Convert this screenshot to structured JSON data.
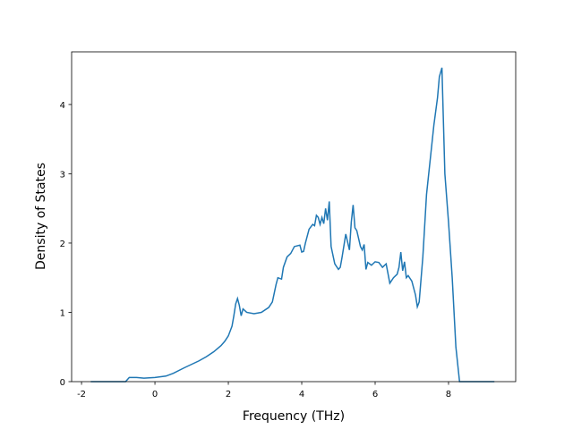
{
  "chart_data": {
    "type": "line",
    "xlabel": "Frequency (THz)",
    "ylabel": "Density of States",
    "x": [
      -1.75,
      -0.8,
      -0.7,
      -0.5,
      -0.3,
      0,
      0.3,
      0.5,
      0.8,
      1.0,
      1.2,
      1.4,
      1.6,
      1.8,
      1.9,
      2.0,
      2.1,
      2.15,
      2.2,
      2.25,
      2.3,
      2.35,
      2.4,
      2.5,
      2.7,
      2.9,
      3.1,
      3.2,
      3.3,
      3.35,
      3.45,
      3.5,
      3.6,
      3.7,
      3.8,
      3.95,
      4.0,
      4.05,
      4.1,
      4.2,
      4.3,
      4.35,
      4.4,
      4.45,
      4.5,
      4.55,
      4.6,
      4.65,
      4.7,
      4.75,
      4.8,
      4.9,
      5.0,
      5.05,
      5.1,
      5.2,
      5.3,
      5.35,
      5.4,
      5.45,
      5.5,
      5.6,
      5.65,
      5.7,
      5.75,
      5.8,
      5.9,
      6.0,
      6.1,
      6.2,
      6.3,
      6.4,
      6.5,
      6.6,
      6.65,
      6.7,
      6.75,
      6.8,
      6.85,
      6.9,
      7.0,
      7.1,
      7.15,
      7.2,
      7.3,
      7.4,
      7.5,
      7.6,
      7.7,
      7.75,
      7.82,
      7.9,
      8.0,
      8.1,
      8.2,
      8.3,
      9.25
    ],
    "series": [
      {
        "color": "#1f77b4",
        "values": [
          0,
          0,
          0.06,
          0.06,
          0.05,
          0.06,
          0.08,
          0.12,
          0.2,
          0.25,
          0.3,
          0.36,
          0.43,
          0.52,
          0.58,
          0.66,
          0.8,
          0.95,
          1.12,
          1.2,
          1.1,
          0.95,
          1.05,
          1.0,
          0.98,
          1.0,
          1.07,
          1.15,
          1.4,
          1.5,
          1.48,
          1.65,
          1.8,
          1.85,
          1.95,
          1.97,
          1.87,
          1.88,
          2.0,
          2.2,
          2.27,
          2.25,
          2.4,
          2.37,
          2.27,
          2.37,
          2.28,
          2.5,
          2.33,
          2.6,
          1.95,
          1.7,
          1.62,
          1.65,
          1.8,
          2.13,
          1.9,
          2.3,
          2.55,
          2.22,
          2.18,
          1.95,
          1.9,
          1.98,
          1.62,
          1.72,
          1.68,
          1.73,
          1.72,
          1.65,
          1.7,
          1.42,
          1.5,
          1.55,
          1.65,
          1.87,
          1.6,
          1.73,
          1.5,
          1.53,
          1.45,
          1.25,
          1.08,
          1.15,
          1.8,
          2.7,
          3.2,
          3.7,
          4.1,
          4.4,
          4.53,
          3.0,
          2.3,
          1.5,
          0.5,
          0,
          0
        ]
      }
    ],
    "xlim": [
      -2.27,
      9.83
    ],
    "ylim": [
      0,
      4.76
    ],
    "xticks": [
      -2,
      0,
      2,
      4,
      6,
      8
    ],
    "yticks": [
      0,
      1,
      2,
      3,
      4
    ]
  }
}
